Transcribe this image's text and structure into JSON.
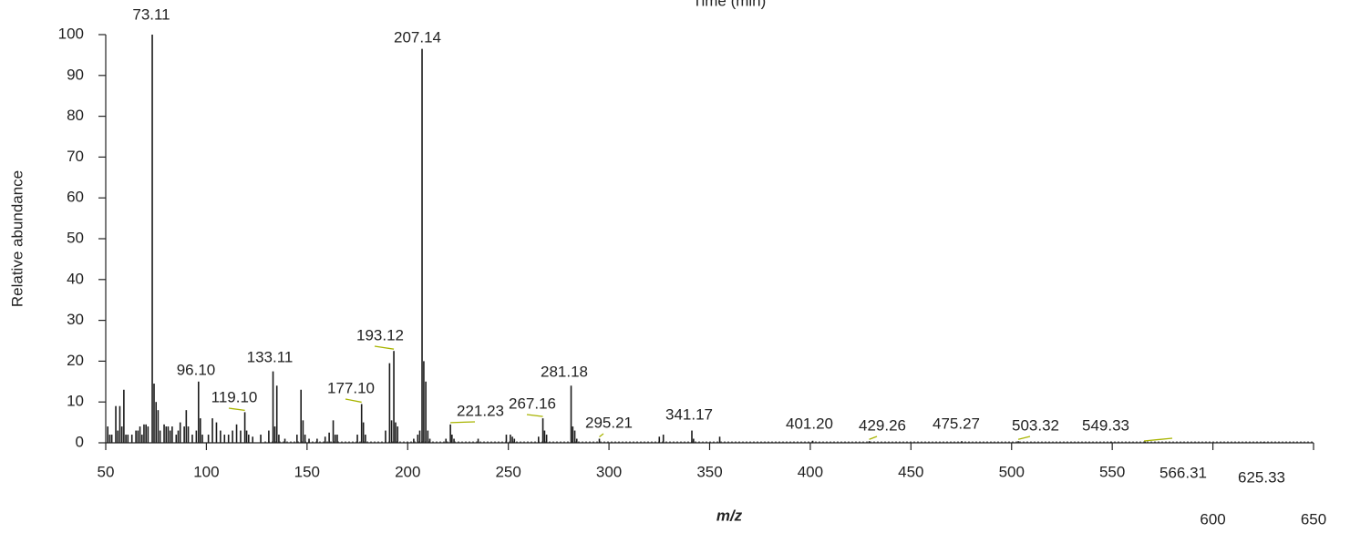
{
  "chart_data": {
    "type": "stick",
    "title": "Time (min)",
    "xlabel": "m/z",
    "ylabel": "Relative abundance",
    "xlim": [
      50,
      650
    ],
    "ylim": [
      0,
      100
    ],
    "xticks": [
      50,
      100,
      150,
      200,
      250,
      300,
      350,
      400,
      450,
      500,
      550,
      600,
      650
    ],
    "yticks": [
      0,
      10,
      20,
      30,
      40,
      50,
      60,
      70,
      80,
      90,
      100
    ],
    "color": "#1a1a1a",
    "leader_color": "#a8b400",
    "series": [
      {
        "x": [
          51,
          52,
          53,
          55,
          56,
          57,
          58,
          59,
          60,
          61,
          63,
          65,
          66,
          67,
          68,
          69,
          70,
          71,
          73.11,
          74,
          75,
          76,
          77,
          79,
          80,
          81,
          82,
          83,
          85,
          86,
          87,
          89,
          90,
          91,
          93,
          95,
          96.1,
          97,
          98,
          101,
          103,
          105,
          107,
          109,
          111,
          113,
          115,
          117,
          119.1,
          120,
          121,
          123,
          127,
          131,
          133.11,
          134,
          135,
          136,
          139,
          145,
          147,
          148,
          149,
          151,
          155,
          159,
          161,
          163,
          164,
          165,
          175,
          177.1,
          178,
          179,
          189,
          191,
          192,
          193.12,
          194,
          195,
          203,
          205,
          206,
          207.14,
          208,
          209,
          210,
          211,
          219,
          221.23,
          222,
          223,
          235,
          249,
          251,
          252,
          253,
          265,
          267.16,
          268,
          269,
          281.18,
          282,
          283,
          284,
          295.21,
          325,
          327,
          341.17,
          342,
          355,
          401.2,
          429.26,
          475.27,
          503.32,
          549.33,
          566.31,
          625.33
        ],
        "values": [
          4,
          2,
          2,
          9,
          3,
          9,
          4,
          13,
          2,
          2,
          2,
          3,
          3,
          4,
          2,
          4.5,
          4.5,
          4,
          100,
          14.5,
          10,
          8,
          3,
          4.5,
          4,
          4,
          3,
          4,
          2,
          3,
          5,
          4,
          8,
          4,
          2,
          3,
          15,
          6,
          2,
          2,
          6,
          5,
          3,
          2,
          2,
          3,
          4.5,
          3,
          7.5,
          3,
          2,
          1.5,
          2,
          3,
          17.5,
          4,
          14,
          2,
          1,
          2,
          13,
          5.5,
          2,
          1,
          1,
          1.5,
          2.5,
          5.5,
          2,
          2,
          2,
          9.5,
          5,
          2,
          3,
          19.5,
          5.5,
          22.5,
          5,
          4,
          1,
          2,
          3,
          96.5,
          20,
          15,
          3,
          1,
          1,
          4.5,
          2,
          1,
          1,
          2,
          2,
          1.5,
          1,
          1.5,
          6,
          3,
          2,
          14,
          4,
          3,
          1,
          1,
          1.5,
          2,
          3,
          1,
          1.5,
          0.5,
          0.4,
          0.4,
          0.4,
          0.3,
          0.3,
          0.2
        ]
      }
    ],
    "annotations": [
      {
        "label": "73.11",
        "x": 73.11
      },
      {
        "label": "207.14",
        "x": 207.14
      },
      {
        "label": "96.10",
        "x": 96.1
      },
      {
        "label": "119.10",
        "x": 119.1
      },
      {
        "label": "133.11",
        "x": 133.11
      },
      {
        "label": "177.10",
        "x": 177.1
      },
      {
        "label": "193.12",
        "x": 193.12
      },
      {
        "label": "221.23",
        "x": 221.23
      },
      {
        "label": "267.16",
        "x": 267.16
      },
      {
        "label": "281.18",
        "x": 281.18
      },
      {
        "label": "295.21",
        "x": 295.21
      },
      {
        "label": "341.17",
        "x": 341.17
      },
      {
        "label": "401.20",
        "x": 401.2
      },
      {
        "label": "429.26",
        "x": 429.26
      },
      {
        "label": "475.27",
        "x": 475.27
      },
      {
        "label": "503.32",
        "x": 503.32
      },
      {
        "label": "549.33",
        "x": 549.33
      },
      {
        "label": "566.31",
        "x": 566.31
      },
      {
        "label": "625.33",
        "x": 625.33
      }
    ]
  }
}
